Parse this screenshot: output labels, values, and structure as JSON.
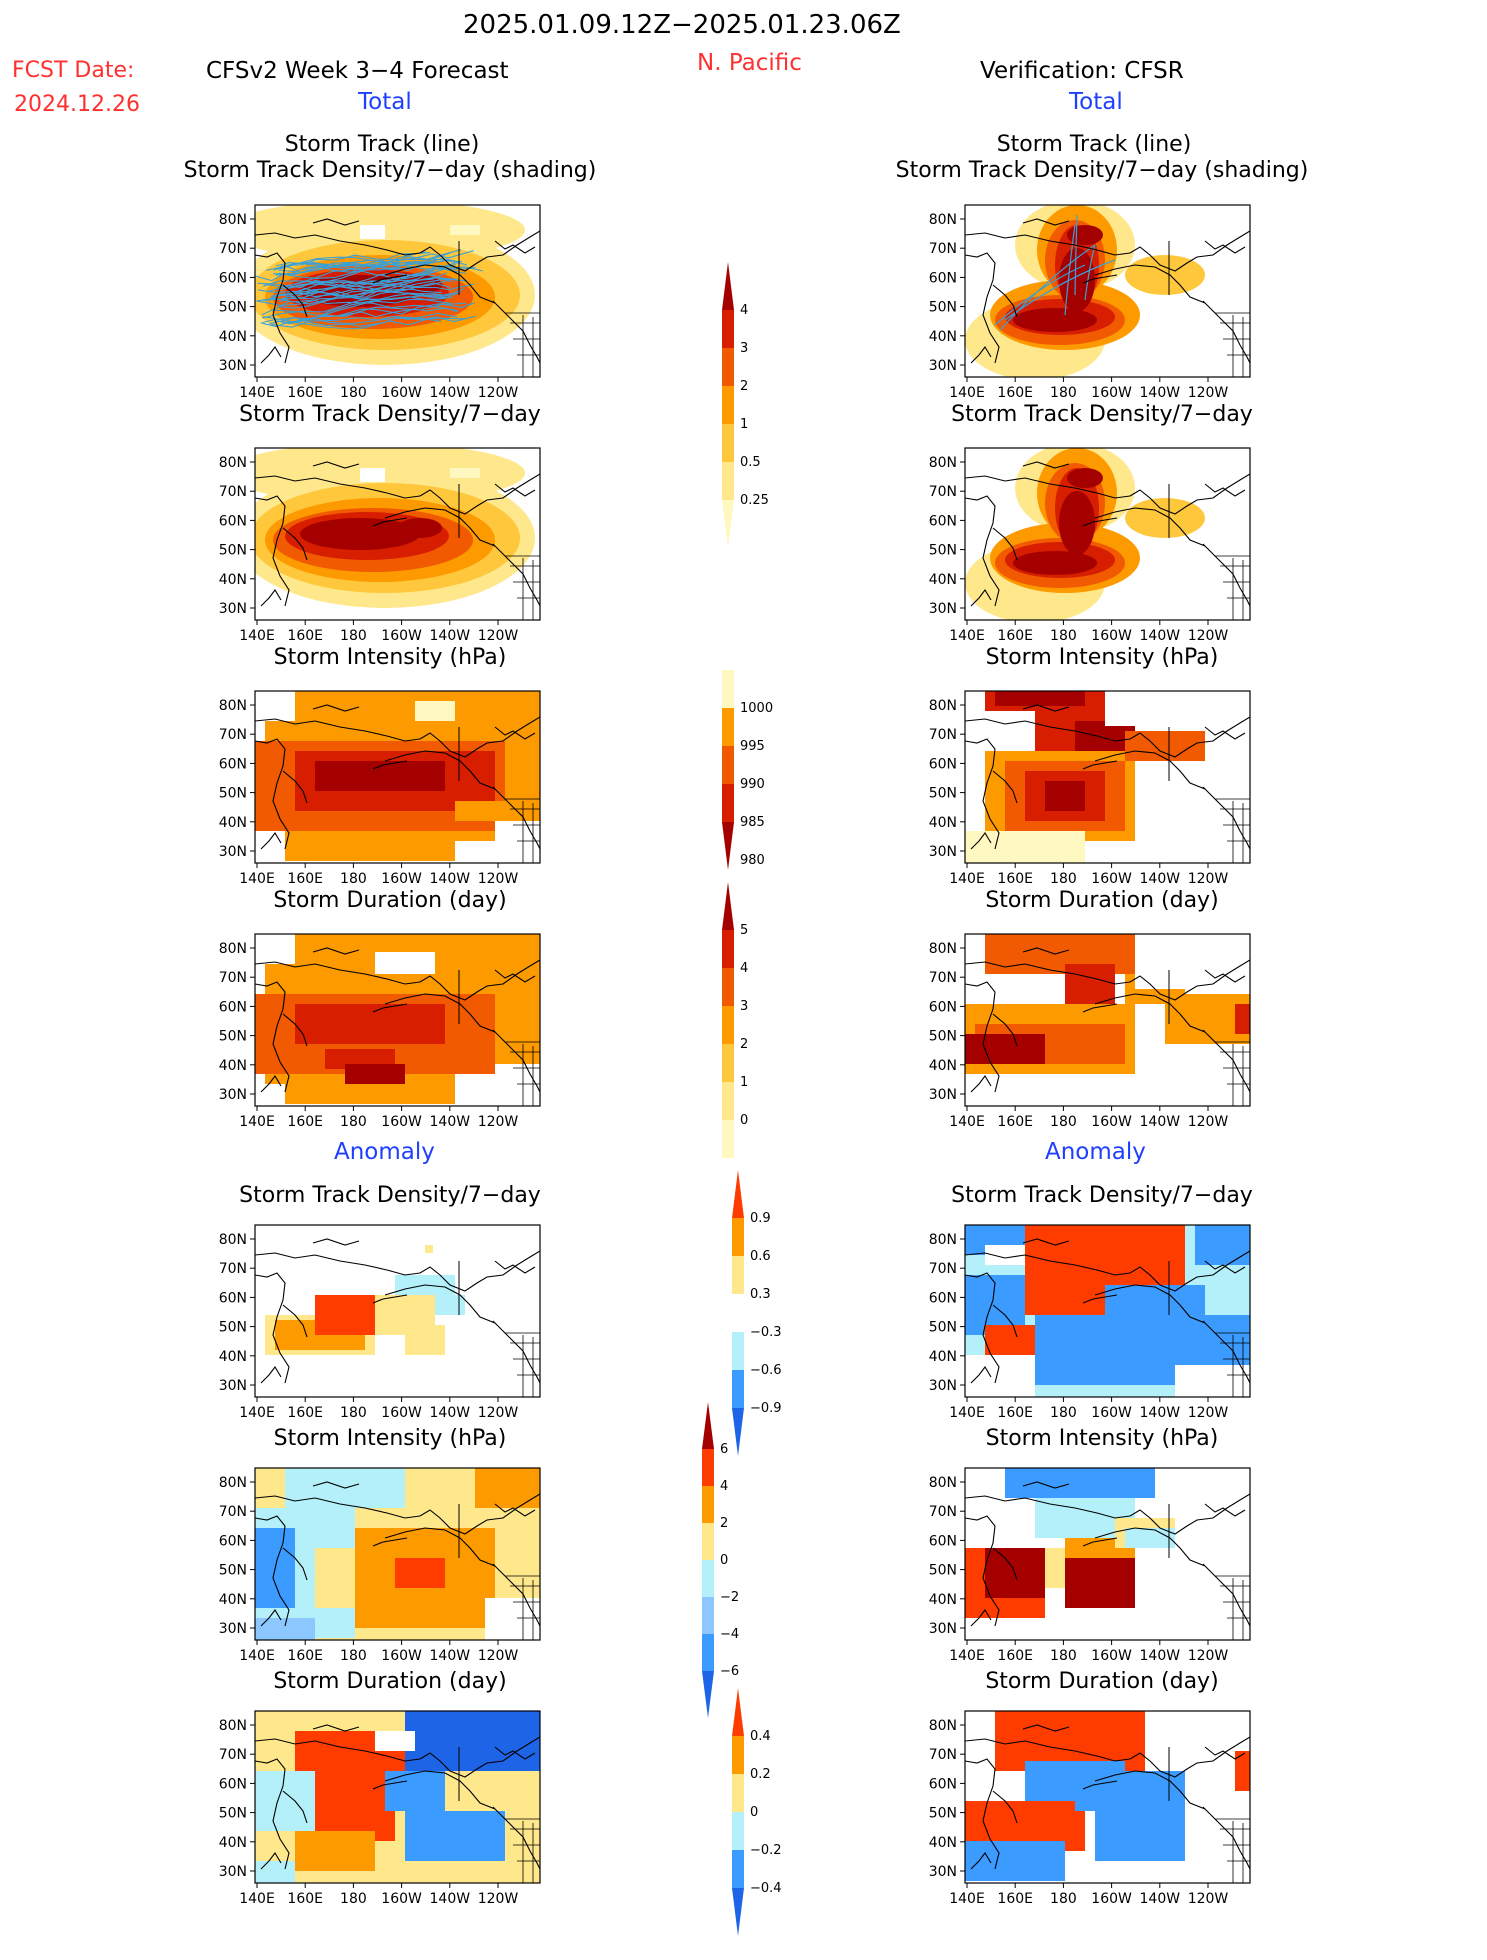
{
  "header": {
    "period": "2025.01.09.12Z−2025.01.23.06Z",
    "fcst_label": "FCST Date:",
    "fcst_date": "2024.12.26",
    "model": "CFSv2 Week 3−4 Forecast",
    "region": "N. Pacific",
    "verification": "Verification: CFSR",
    "total_left": "Total",
    "total_right": "Total",
    "anomaly_left": "Anomaly",
    "anomaly_right": "Anomaly"
  },
  "axes": {
    "lat_ticks": [
      "80N",
      "70N",
      "60N",
      "50N",
      "40N",
      "30N"
    ],
    "lon_ticks": [
      "140E",
      "160E",
      "180",
      "160W",
      "140W",
      "120W"
    ]
  },
  "rows": [
    {
      "title_left_1": "Storm Track (line)",
      "title_left_2": "Storm Track Density/7−day (shading)",
      "title_right_1": "Storm Track (line)",
      "title_right_2": "Storm Track Density/7−day (shading)"
    },
    {
      "title_left": "Storm Track Density/7−day",
      "title_right": "Storm Track Density/7−day"
    },
    {
      "title_left": "Storm Intensity (hPa)",
      "title_right": "Storm Intensity (hPa)"
    },
    {
      "title_left": "Storm Duration (day)",
      "title_right": "Storm Duration (day)"
    },
    {
      "title_left": "Storm Track Density/7−day",
      "title_right": "Storm Track Density/7−day"
    },
    {
      "title_left": "Storm Intensity (hPa)",
      "title_right": "Storm Intensity (hPa)"
    },
    {
      "title_left": "Storm Duration (day)",
      "title_right": "Storm Duration (day)"
    }
  ],
  "colorbars": {
    "density": {
      "labels": [
        "4",
        "3",
        "2",
        "1",
        "0.5",
        "0.25"
      ],
      "colors": [
        "#a50000",
        "#d71e00",
        "#f15a00",
        "#fd9a00",
        "#ffc83c",
        "#ffe88c",
        "#fff8c0"
      ]
    },
    "intensity": {
      "labels": [
        "1000",
        "995",
        "990",
        "985",
        "980"
      ],
      "colors": [
        "#fff8c0",
        "#fd9a00",
        "#f15a00",
        "#d71e00",
        "#a50000"
      ]
    },
    "duration": {
      "labels": [
        "5",
        "4",
        "3",
        "2",
        "1",
        "0"
      ],
      "colors": [
        "#a50000",
        "#d71e00",
        "#f15a00",
        "#fd9a00",
        "#ffc83c",
        "#ffe88c",
        "#fff8c0"
      ]
    },
    "density_anom": {
      "labels": [
        "0.9",
        "0.6",
        "0.3",
        "−0.3",
        "−0.6",
        "−0.9"
      ],
      "colors": [
        "#ff3c00",
        "#fd9a00",
        "#ffe88c",
        "#ffffff",
        "#b4f0fa",
        "#3c9bff",
        "#1e64e6"
      ]
    },
    "intensity_anom": {
      "labels": [
        "6",
        "4",
        "2",
        "0",
        "−2",
        "−4",
        "−6"
      ],
      "colors": [
        "#a50000",
        "#ff3c00",
        "#fd9a00",
        "#ffe88c",
        "#b4f0fa",
        "#8cc8ff",
        "#3c9bff",
        "#1e64e6"
      ]
    },
    "duration_anom": {
      "labels": [
        "0.4",
        "0.2",
        "0",
        "−0.2",
        "−0.4"
      ],
      "colors": [
        "#ff3c00",
        "#fd9a00",
        "#ffe88c",
        "#b4f0fa",
        "#3c9bff",
        "#1e64e6"
      ]
    }
  }
}
